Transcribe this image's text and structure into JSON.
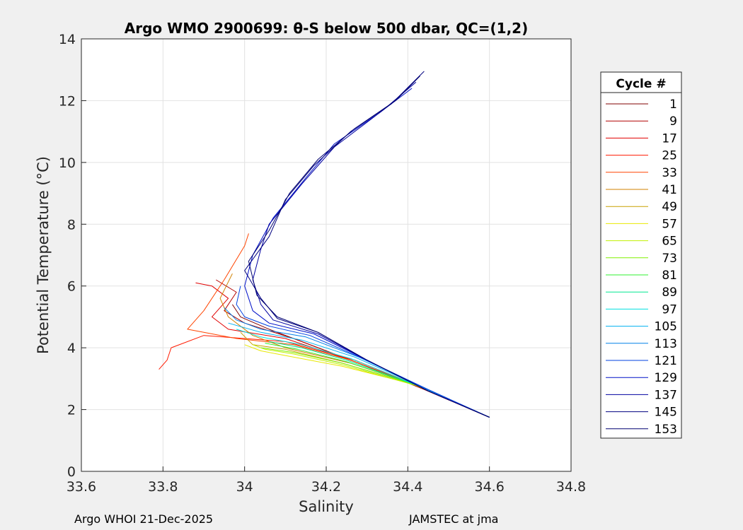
{
  "chart_data": {
    "type": "line",
    "title": "Argo WMO 2900699: θ-S below 500 dbar,  QC=(1,2)",
    "xlabel": "Salinity",
    "ylabel": "Potential Temperature (°C)",
    "xlim": [
      33.6,
      34.8
    ],
    "ylim": [
      0,
      14
    ],
    "xticks": [
      33.6,
      33.8,
      34.0,
      34.2,
      34.4,
      34.6,
      34.8
    ],
    "xtick_labels": [
      "33.6",
      "33.8",
      "34",
      "34.2",
      "34.4",
      "34.6",
      "34.8"
    ],
    "yticks": [
      0,
      2,
      4,
      6,
      8,
      10,
      12,
      14
    ],
    "ytick_labels": [
      "0",
      "2",
      "4",
      "6",
      "8",
      "10",
      "12",
      "14"
    ],
    "grid": true,
    "legend_title": "Cycle #",
    "legend_position": "outside-right",
    "series": [
      {
        "name": "1",
        "color": "#800000",
        "points": [
          [
            34.6,
            1.75
          ],
          [
            34.45,
            2.6
          ],
          [
            34.3,
            3.4
          ],
          [
            34.18,
            4.0
          ],
          [
            34.06,
            4.6
          ],
          [
            33.99,
            5.0
          ],
          [
            33.97,
            5.4
          ]
        ]
      },
      {
        "name": "9",
        "color": "#b20000",
        "points": [
          [
            34.6,
            1.75
          ],
          [
            34.44,
            2.65
          ],
          [
            34.28,
            3.5
          ],
          [
            34.12,
            4.3
          ],
          [
            34.0,
            4.8
          ],
          [
            33.95,
            5.2
          ],
          [
            33.98,
            5.8
          ],
          [
            33.93,
            6.2
          ]
        ]
      },
      {
        "name": "17",
        "color": "#e00000",
        "points": [
          [
            34.6,
            1.75
          ],
          [
            34.44,
            2.7
          ],
          [
            34.27,
            3.55
          ],
          [
            34.1,
            4.3
          ],
          [
            33.96,
            4.6
          ],
          [
            33.92,
            5.0
          ],
          [
            33.96,
            5.6
          ],
          [
            33.92,
            6.0
          ],
          [
            33.88,
            6.1
          ]
        ]
      },
      {
        "name": "25",
        "color": "#ff1a00",
        "points": [
          [
            34.6,
            1.75
          ],
          [
            34.44,
            2.7
          ],
          [
            34.27,
            3.6
          ],
          [
            34.1,
            4.2
          ],
          [
            33.9,
            4.4
          ],
          [
            33.82,
            4.0
          ],
          [
            33.81,
            3.6
          ],
          [
            33.79,
            3.3
          ]
        ]
      },
      {
        "name": "33",
        "color": "#ff4400",
        "points": [
          [
            34.6,
            1.75
          ],
          [
            34.44,
            2.7
          ],
          [
            34.26,
            3.6
          ],
          [
            34.12,
            4.1
          ],
          [
            33.98,
            4.3
          ],
          [
            33.86,
            4.6
          ],
          [
            33.9,
            5.2
          ],
          [
            33.95,
            6.2
          ],
          [
            34.0,
            7.3
          ],
          [
            34.01,
            7.7
          ]
        ]
      },
      {
        "name": "41",
        "color": "#d08000",
        "points": [
          [
            34.6,
            1.75
          ],
          [
            34.43,
            2.75
          ],
          [
            34.26,
            3.5
          ],
          [
            34.1,
            4.0
          ],
          [
            34.02,
            4.4
          ],
          [
            33.96,
            5.0
          ],
          [
            33.94,
            5.6
          ],
          [
            33.97,
            6.4
          ]
        ]
      },
      {
        "name": "49",
        "color": "#c8a000",
        "points": [
          [
            34.6,
            1.75
          ],
          [
            34.42,
            2.8
          ],
          [
            34.24,
            3.5
          ],
          [
            34.1,
            3.95
          ],
          [
            34.02,
            4.1
          ],
          [
            33.99,
            4.5
          ]
        ]
      },
      {
        "name": "57",
        "color": "#e8e800",
        "points": [
          [
            34.6,
            1.75
          ],
          [
            34.42,
            2.8
          ],
          [
            34.24,
            3.4
          ],
          [
            34.1,
            3.75
          ],
          [
            34.04,
            3.9
          ],
          [
            34.0,
            4.1
          ]
        ]
      },
      {
        "name": "65",
        "color": "#c0f000",
        "points": [
          [
            34.6,
            1.75
          ],
          [
            34.42,
            2.78
          ],
          [
            34.24,
            3.45
          ],
          [
            34.12,
            3.8
          ],
          [
            34.05,
            3.95
          ],
          [
            34.02,
            4.1
          ]
        ]
      },
      {
        "name": "73",
        "color": "#80f000",
        "points": [
          [
            34.6,
            1.75
          ],
          [
            34.42,
            2.8
          ],
          [
            34.24,
            3.5
          ],
          [
            34.12,
            3.85
          ],
          [
            34.04,
            4.0
          ]
        ]
      },
      {
        "name": "81",
        "color": "#30f030",
        "points": [
          [
            34.6,
            1.75
          ],
          [
            34.42,
            2.8
          ],
          [
            34.25,
            3.55
          ],
          [
            34.13,
            3.95
          ],
          [
            34.05,
            4.15
          ]
        ]
      },
      {
        "name": "89",
        "color": "#00e890",
        "points": [
          [
            34.6,
            1.75
          ],
          [
            34.43,
            2.75
          ],
          [
            34.25,
            3.6
          ],
          [
            34.14,
            4.0
          ],
          [
            34.06,
            4.2
          ]
        ]
      },
      {
        "name": "97",
        "color": "#00e0e0",
        "points": [
          [
            34.6,
            1.75
          ],
          [
            34.43,
            2.75
          ],
          [
            34.26,
            3.65
          ],
          [
            34.14,
            4.1
          ],
          [
            34.04,
            4.35
          ],
          [
            33.98,
            4.6
          ]
        ]
      },
      {
        "name": "105",
        "color": "#00b0f0",
        "points": [
          [
            34.6,
            1.75
          ],
          [
            34.44,
            2.7
          ],
          [
            34.27,
            3.7
          ],
          [
            34.14,
            4.25
          ],
          [
            34.04,
            4.5
          ],
          [
            33.96,
            4.8
          ]
        ]
      },
      {
        "name": "113",
        "color": "#0080e8",
        "points": [
          [
            34.6,
            1.75
          ],
          [
            34.44,
            2.7
          ],
          [
            34.28,
            3.7
          ],
          [
            34.15,
            4.35
          ],
          [
            34.04,
            4.6
          ],
          [
            33.98,
            4.9
          ],
          [
            33.95,
            5.3
          ]
        ]
      },
      {
        "name": "121",
        "color": "#0040e0",
        "points": [
          [
            34.6,
            1.75
          ],
          [
            34.45,
            2.65
          ],
          [
            34.29,
            3.65
          ],
          [
            34.16,
            4.4
          ],
          [
            34.06,
            4.7
          ],
          [
            34.0,
            5.0
          ],
          [
            33.98,
            5.4
          ],
          [
            33.99,
            6.0
          ]
        ]
      },
      {
        "name": "129",
        "color": "#0010c8",
        "points": [
          [
            34.6,
            1.75
          ],
          [
            34.45,
            2.6
          ],
          [
            34.3,
            3.6
          ],
          [
            34.17,
            4.45
          ],
          [
            34.06,
            4.8
          ],
          [
            34.02,
            5.2
          ],
          [
            34.0,
            6.0
          ],
          [
            34.02,
            7.0
          ],
          [
            34.07,
            8.2
          ],
          [
            34.15,
            9.5
          ],
          [
            34.22,
            10.6
          ],
          [
            34.33,
            11.6
          ],
          [
            34.41,
            12.4
          ]
        ]
      },
      {
        "name": "137",
        "color": "#0000a0",
        "points": [
          [
            34.6,
            1.75
          ],
          [
            34.45,
            2.6
          ],
          [
            34.3,
            3.6
          ],
          [
            34.18,
            4.45
          ],
          [
            34.07,
            4.9
          ],
          [
            34.04,
            5.4
          ],
          [
            34.02,
            6.2
          ],
          [
            34.04,
            7.2
          ],
          [
            34.06,
            8.0
          ],
          [
            34.14,
            9.3
          ],
          [
            34.22,
            10.5
          ],
          [
            34.34,
            11.7
          ],
          [
            34.42,
            12.6
          ]
        ]
      },
      {
        "name": "145",
        "color": "#000080",
        "points": [
          [
            34.6,
            1.75
          ],
          [
            34.45,
            2.6
          ],
          [
            34.3,
            3.6
          ],
          [
            34.18,
            4.5
          ],
          [
            34.08,
            4.95
          ],
          [
            34.04,
            5.6
          ],
          [
            34.0,
            6.5
          ],
          [
            34.06,
            7.6
          ],
          [
            34.1,
            8.8
          ],
          [
            34.17,
            9.9
          ],
          [
            34.26,
            11.0
          ],
          [
            34.36,
            11.9
          ],
          [
            34.44,
            12.95
          ]
        ]
      },
      {
        "name": "153",
        "color": "#000070",
        "points": [
          [
            34.6,
            1.75
          ],
          [
            34.45,
            2.6
          ],
          [
            34.3,
            3.6
          ],
          [
            34.18,
            4.5
          ],
          [
            34.08,
            5.0
          ],
          [
            34.03,
            5.7
          ],
          [
            34.01,
            6.8
          ],
          [
            34.06,
            7.8
          ],
          [
            34.11,
            9.0
          ],
          [
            34.18,
            10.1
          ],
          [
            34.27,
            11.1
          ],
          [
            34.37,
            12.0
          ],
          [
            34.43,
            12.8
          ]
        ]
      }
    ]
  },
  "footer": {
    "left": "Argo WHOI 21-Dec-2025",
    "right": "JAMSTEC at jma"
  }
}
